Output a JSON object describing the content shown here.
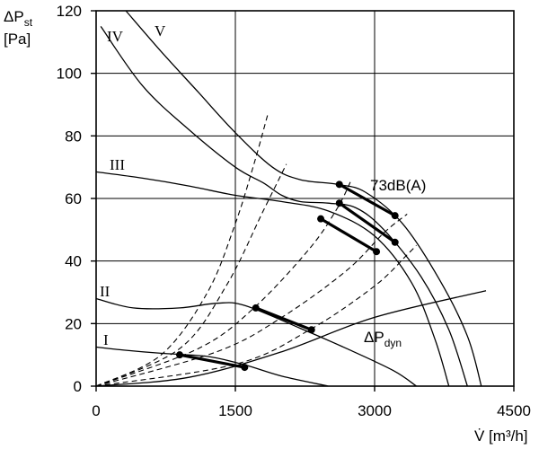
{
  "chart_data": {
    "type": "line",
    "ylabel_main": "ΔP",
    "ylabel_sub": "st",
    "ylabel_unit": "[Pa]",
    "xlabel": "V̇ [m³/h]",
    "xlim": [
      0,
      4500
    ],
    "ylim": [
      0,
      120
    ],
    "x_ticks": [
      "0",
      "1500",
      "3000",
      "4500"
    ],
    "y_ticks": [
      "0",
      "20",
      "40",
      "60",
      "80",
      "100",
      "120"
    ],
    "x_tick_values": [
      0,
      1500,
      3000,
      4500
    ],
    "y_tick_values": [
      0,
      20,
      40,
      60,
      80,
      100,
      120
    ],
    "grid": true,
    "series": [
      {
        "name": "I",
        "points": [
          [
            0,
            12.5
          ],
          [
            300,
            11.5
          ],
          [
            700,
            10.5
          ],
          [
            1200,
            9.5
          ],
          [
            1600,
            6.8
          ],
          [
            2000,
            3.2
          ],
          [
            2500,
            0
          ]
        ]
      },
      {
        "name": "II",
        "points": [
          [
            0,
            28
          ],
          [
            400,
            25
          ],
          [
            900,
            25
          ],
          [
            1300,
            26.5
          ],
          [
            1600,
            25.8
          ],
          [
            2200,
            18.5
          ],
          [
            2700,
            12
          ],
          [
            3200,
            5
          ],
          [
            3450,
            0
          ]
        ]
      },
      {
        "name": "III",
        "points": [
          [
            0,
            68.5
          ],
          [
            500,
            66.5
          ],
          [
            1000,
            64
          ],
          [
            1500,
            61
          ],
          [
            2000,
            59
          ],
          [
            2500,
            56
          ],
          [
            3000,
            48
          ],
          [
            3400,
            33
          ],
          [
            3650,
            15
          ],
          [
            3800,
            0
          ]
        ]
      },
      {
        "name": "IV",
        "points": [
          [
            50,
            115
          ],
          [
            500,
            96
          ],
          [
            1000,
            82
          ],
          [
            1500,
            70
          ],
          [
            1800,
            65
          ],
          [
            2000,
            61
          ],
          [
            2200,
            59
          ],
          [
            2500,
            58.5
          ],
          [
            2800,
            57
          ],
          [
            3100,
            50
          ],
          [
            3500,
            35
          ],
          [
            3800,
            18
          ],
          [
            4000,
            0
          ]
        ]
      },
      {
        "name": "V",
        "points": [
          [
            320,
            120
          ],
          [
            700,
            107
          ],
          [
            1100,
            94
          ],
          [
            1500,
            81
          ],
          [
            1900,
            70
          ],
          [
            2200,
            66
          ],
          [
            2600,
            64.5
          ],
          [
            2900,
            62
          ],
          [
            3300,
            52
          ],
          [
            3700,
            34
          ],
          [
            4000,
            16
          ],
          [
            4150,
            0
          ]
        ]
      },
      {
        "name": "ΔPdyn",
        "points": [
          [
            0,
            0
          ],
          [
            1000,
            2.8
          ],
          [
            2000,
            11
          ],
          [
            3000,
            22
          ],
          [
            4200,
            30.5
          ]
        ]
      }
    ],
    "dashed_lines": [
      {
        "points": [
          [
            0,
            0
          ],
          [
            700,
            10
          ],
          [
            1200,
            30
          ],
          [
            1500,
            52
          ],
          [
            1700,
            71
          ],
          [
            1850,
            87
          ]
        ]
      },
      {
        "points": [
          [
            0,
            0
          ],
          [
            900,
            12
          ],
          [
            1400,
            32
          ],
          [
            1800,
            56
          ],
          [
            2050,
            71
          ]
        ]
      },
      {
        "points": [
          [
            0,
            0
          ],
          [
            1100,
            12
          ],
          [
            1700,
            25
          ],
          [
            2300,
            44
          ],
          [
            2600,
            57
          ],
          [
            2750,
            66
          ]
        ]
      },
      {
        "points": [
          [
            0,
            0
          ],
          [
            1300,
            11
          ],
          [
            2000,
            22
          ],
          [
            2700,
            37
          ],
          [
            3100,
            49
          ],
          [
            3350,
            55
          ]
        ]
      },
      {
        "points": [
          [
            0,
            0
          ],
          [
            1500,
            7
          ],
          [
            2300,
            18
          ],
          [
            3000,
            32
          ],
          [
            3350,
            42
          ],
          [
            3450,
            45
          ]
        ]
      }
    ],
    "operating_segments": [
      {
        "points": [
          [
            900,
            10
          ],
          [
            1600,
            6
          ]
        ]
      },
      {
        "points": [
          [
            1720,
            25
          ],
          [
            2320,
            18
          ]
        ]
      },
      {
        "points": [
          [
            2420,
            53.5
          ],
          [
            3020,
            43
          ]
        ]
      },
      {
        "points": [
          [
            2620,
            58.5
          ],
          [
            3220,
            46
          ]
        ]
      },
      {
        "points": [
          [
            2620,
            64.5
          ],
          [
            3220,
            54.5
          ]
        ]
      }
    ],
    "annotations": {
      "noise": "73dB(A)",
      "dyn_main": "ΔP",
      "dyn_sub": "dyn",
      "label_I": "I",
      "label_II": "II",
      "label_III": "III",
      "label_IV": "IV",
      "label_V": "V"
    }
  }
}
